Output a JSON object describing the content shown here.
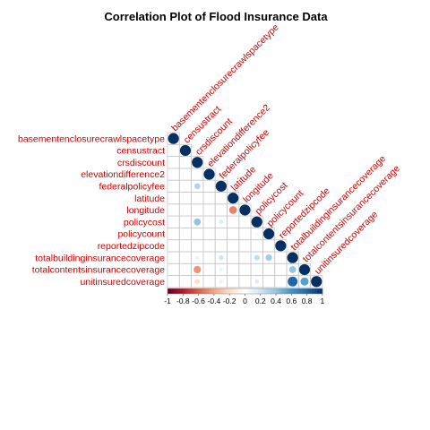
{
  "chart_data": {
    "type": "heatmap",
    "title": "Correlation Plot of Flood Insurance Data",
    "variables": [
      "basementenclosurecrawlspacetype",
      "censustract",
      "crsdiscount",
      "elevationdifference2",
      "federalpolicyfee",
      "latitude",
      "longitude",
      "policycost",
      "policycount",
      "reportedzipcode",
      "totalbuildinginsurancecoverage",
      "totalcontentsinsurancecoverage",
      "unitinsuredcoverage"
    ],
    "layout": "lower-triangle",
    "cells": [
      {
        "row": 0,
        "col": 0,
        "value": 1.0
      },
      {
        "row": 1,
        "col": 1,
        "value": 1.0
      },
      {
        "row": 2,
        "col": 2,
        "value": 1.0
      },
      {
        "row": 3,
        "col": 3,
        "value": 1.0
      },
      {
        "row": 4,
        "col": 2,
        "value": 0.3
      },
      {
        "row": 4,
        "col": 4,
        "value": 1.0
      },
      {
        "row": 5,
        "col": 5,
        "value": 1.0
      },
      {
        "row": 6,
        "col": 5,
        "value": -0.5
      },
      {
        "row": 6,
        "col": 6,
        "value": 1.0
      },
      {
        "row": 7,
        "col": 2,
        "value": 0.4
      },
      {
        "row": 7,
        "col": 3,
        "value": 0.05
      },
      {
        "row": 7,
        "col": 4,
        "value": 0.15
      },
      {
        "row": 7,
        "col": 6,
        "value": 0.05
      },
      {
        "row": 7,
        "col": 7,
        "value": 1.0
      },
      {
        "row": 8,
        "col": 7,
        "value": 0.05
      },
      {
        "row": 8,
        "col": 8,
        "value": 1.0
      },
      {
        "row": 9,
        "col": 9,
        "value": 1.0
      },
      {
        "row": 10,
        "col": 2,
        "value": 0.1
      },
      {
        "row": 10,
        "col": 4,
        "value": 0.2
      },
      {
        "row": 10,
        "col": 7,
        "value": 0.25
      },
      {
        "row": 10,
        "col": 8,
        "value": 0.35
      },
      {
        "row": 10,
        "col": 10,
        "value": 1.0
      },
      {
        "row": 11,
        "col": 2,
        "value": -0.45
      },
      {
        "row": 11,
        "col": 4,
        "value": 0.1
      },
      {
        "row": 11,
        "col": 10,
        "value": 0.4
      },
      {
        "row": 11,
        "col": 11,
        "value": 1.0
      },
      {
        "row": 12,
        "col": 2,
        "value": -0.2
      },
      {
        "row": 12,
        "col": 4,
        "value": 0.1
      },
      {
        "row": 12,
        "col": 7,
        "value": 0.15
      },
      {
        "row": 12,
        "col": 10,
        "value": 0.8
      },
      {
        "row": 12,
        "col": 11,
        "value": 0.55
      },
      {
        "row": 12,
        "col": 12,
        "value": 1.0
      }
    ],
    "colorbar": {
      "range": [
        -1,
        1
      ],
      "ticks": [
        "-1",
        "-0.8",
        "-0.6",
        "-0.4",
        "-0.2",
        "0",
        "0.2",
        "0.4",
        "0.6",
        "0.8",
        "1"
      ],
      "colors": [
        "#67001f",
        "#b2182b",
        "#d6604d",
        "#f4a582",
        "#fddbc7",
        "#ffffff",
        "#d1e5f0",
        "#92c5de",
        "#4393c3",
        "#2166ac",
        "#053061"
      ]
    },
    "label_color": "#d00000"
  }
}
